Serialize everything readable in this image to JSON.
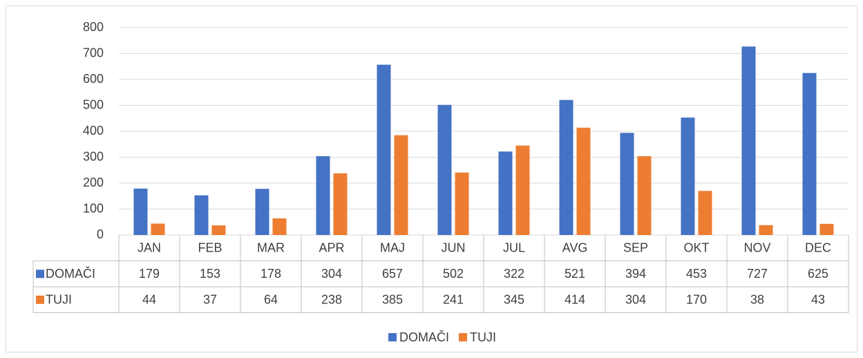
{
  "chart_data": {
    "type": "bar",
    "categories": [
      "JAN",
      "FEB",
      "MAR",
      "APR",
      "MAJ",
      "JUN",
      "JUL",
      "AVG",
      "SEP",
      "OKT",
      "NOV",
      "DEC"
    ],
    "series": [
      {
        "name": "DOMAČI",
        "color": "#4472c4",
        "values": [
          179,
          153,
          178,
          304,
          657,
          502,
          322,
          521,
          394,
          453,
          727,
          625
        ]
      },
      {
        "name": "TUJI",
        "color": "#ed7d31",
        "values": [
          44,
          37,
          64,
          238,
          385,
          241,
          345,
          414,
          304,
          170,
          38,
          43
        ]
      }
    ],
    "ylim": [
      0,
      800
    ],
    "yticks": [
      0,
      100,
      200,
      300,
      400,
      500,
      600,
      700,
      800
    ],
    "grid": true,
    "legend": "bottom"
  }
}
